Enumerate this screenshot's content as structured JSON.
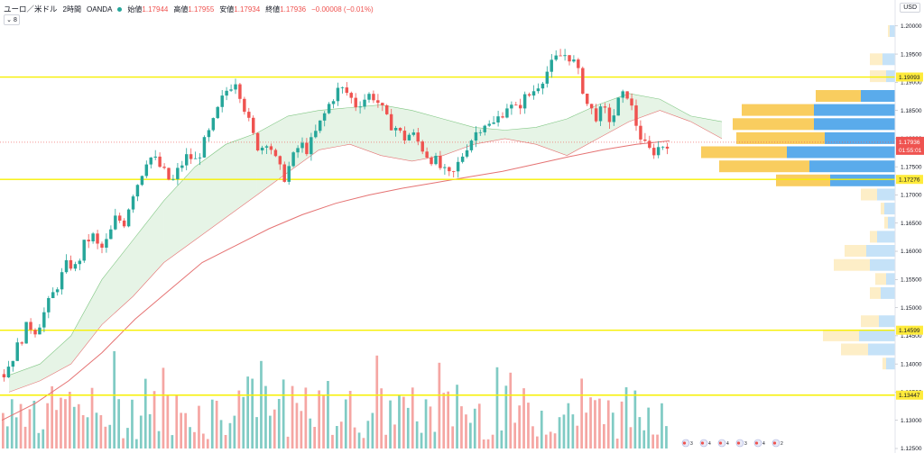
{
  "header": {
    "symbol": "ユーロ／米ドル",
    "timeframe": "2時間",
    "broker": "OANDA",
    "open_label": "始値",
    "open": "1.17944",
    "high_label": "高値",
    "high": "1.17955",
    "low_label": "安値",
    "low": "1.17934",
    "close_label": "終値",
    "close": "1.17936",
    "change": "−0.00008 (−0.01%)",
    "collapse_glyph": "⌄ 8"
  },
  "currency_button": "USD",
  "colors": {
    "up": "#26a69a",
    "down": "#ef5350",
    "level": "#f7f000",
    "ma": "#e57373",
    "cloud_bull": "#a5d6a7",
    "cloud_bear": "#ef9a9a",
    "vp_up": "#5aabeb",
    "vp_down": "#f9cd5f"
  },
  "chart_data": {
    "type": "candlestick",
    "y_range": [
      1.125,
      1.203
    ],
    "y_ticks": [
      "1.20000",
      "1.19500",
      "1.19000",
      "1.18500",
      "1.18000",
      "1.17500",
      "1.17000",
      "1.16500",
      "1.16000",
      "1.15500",
      "1.15000",
      "1.14500",
      "1.14000",
      "1.13500",
      "1.13000",
      "1.12500"
    ],
    "horizontal_levels": [
      {
        "value": 1.19093,
        "label": "1.19093"
      },
      {
        "value": 1.17276,
        "label": "1.17276"
      },
      {
        "value": 1.14599,
        "label": "1.14599"
      },
      {
        "value": 1.13447,
        "label": "1.13447"
      }
    ],
    "current_price": {
      "value": 1.17936,
      "label": "1.17936",
      "countdown": "01:55:01"
    },
    "price_path": [
      1.1382,
      1.141,
      1.144,
      1.147,
      1.146,
      1.149,
      1.152,
      1.155,
      1.158,
      1.157,
      1.161,
      1.163,
      1.16,
      1.162,
      1.166,
      1.165,
      1.17,
      1.173,
      1.177,
      1.176,
      1.174,
      1.172,
      1.175,
      1.177,
      1.176,
      1.179,
      1.182,
      1.186,
      1.189,
      1.1905,
      1.186,
      1.181,
      1.178,
      1.18,
      1.176,
      1.173,
      1.176,
      1.179,
      1.178,
      1.181,
      1.184,
      1.187,
      1.189,
      1.188,
      1.186,
      1.187,
      1.188,
      1.186,
      1.183,
      1.182,
      1.18,
      1.181,
      1.179,
      1.177,
      1.176,
      1.174,
      1.173,
      1.176,
      1.179,
      1.181,
      1.183,
      1.182,
      1.184,
      1.186,
      1.185,
      1.187,
      1.188,
      1.19,
      1.192,
      1.194,
      1.195,
      1.1945,
      1.191,
      1.186,
      1.184,
      1.185,
      1.183,
      1.187,
      1.188,
      1.183,
      1.179,
      1.1775,
      1.1785,
      1.1793
    ],
    "ma_path": [
      1.13,
      1.133,
      1.137,
      1.142,
      1.148,
      1.153,
      1.158,
      1.161,
      1.164,
      1.1665,
      1.1685,
      1.17,
      1.1712,
      1.1722,
      1.1732,
      1.1742,
      1.1755,
      1.1768,
      1.178,
      1.179,
      1.1796
    ],
    "cloud_upper": [
      1.138,
      1.14,
      1.145,
      1.155,
      1.162,
      1.169,
      1.175,
      1.179,
      1.181,
      1.184,
      1.185,
      1.1855,
      1.186,
      1.185,
      1.1835,
      1.182,
      1.1815,
      1.182,
      1.1835,
      1.186,
      1.188,
      1.187,
      1.184,
      1.183
    ],
    "cloud_lower": [
      1.135,
      1.137,
      1.14,
      1.147,
      1.152,
      1.158,
      1.162,
      1.166,
      1.17,
      1.174,
      1.178,
      1.179,
      1.177,
      1.176,
      1.177,
      1.179,
      1.18,
      1.179,
      1.177,
      1.18,
      1.183,
      1.185,
      1.183,
      1.18
    ],
    "volume_profile": [
      {
        "price": 1.199,
        "up": 6,
        "down": 2
      },
      {
        "price": 1.194,
        "up": 14,
        "down": 14
      },
      {
        "price": 1.191,
        "up": 10,
        "down": 18
      },
      {
        "price": 1.1875,
        "up": 38,
        "down": 50
      },
      {
        "price": 1.185,
        "up": 90,
        "down": 80
      },
      {
        "price": 1.1825,
        "up": 90,
        "down": 90
      },
      {
        "price": 1.18,
        "up": 78,
        "down": 98
      },
      {
        "price": 1.1775,
        "up": 120,
        "down": 95
      },
      {
        "price": 1.175,
        "up": 95,
        "down": 100
      },
      {
        "price": 1.1725,
        "up": 72,
        "down": 60
      },
      {
        "price": 1.17,
        "up": 20,
        "down": 18
      },
      {
        "price": 1.1675,
        "up": 12,
        "down": 4
      },
      {
        "price": 1.165,
        "up": 8,
        "down": 4
      },
      {
        "price": 1.1625,
        "up": 20,
        "down": 8
      },
      {
        "price": 1.16,
        "up": 32,
        "down": 24
      },
      {
        "price": 1.1575,
        "up": 28,
        "down": 40
      },
      {
        "price": 1.155,
        "up": 10,
        "down": 12
      },
      {
        "price": 1.1525,
        "up": 16,
        "down": 12
      },
      {
        "price": 1.1475,
        "up": 18,
        "down": 20
      },
      {
        "price": 1.145,
        "up": 40,
        "down": 40
      },
      {
        "price": 1.1425,
        "up": 30,
        "down": 30
      },
      {
        "price": 1.14,
        "up": 10,
        "down": 4
      }
    ],
    "events": [
      "3",
      "4",
      "4",
      "3",
      "4",
      "2"
    ]
  }
}
